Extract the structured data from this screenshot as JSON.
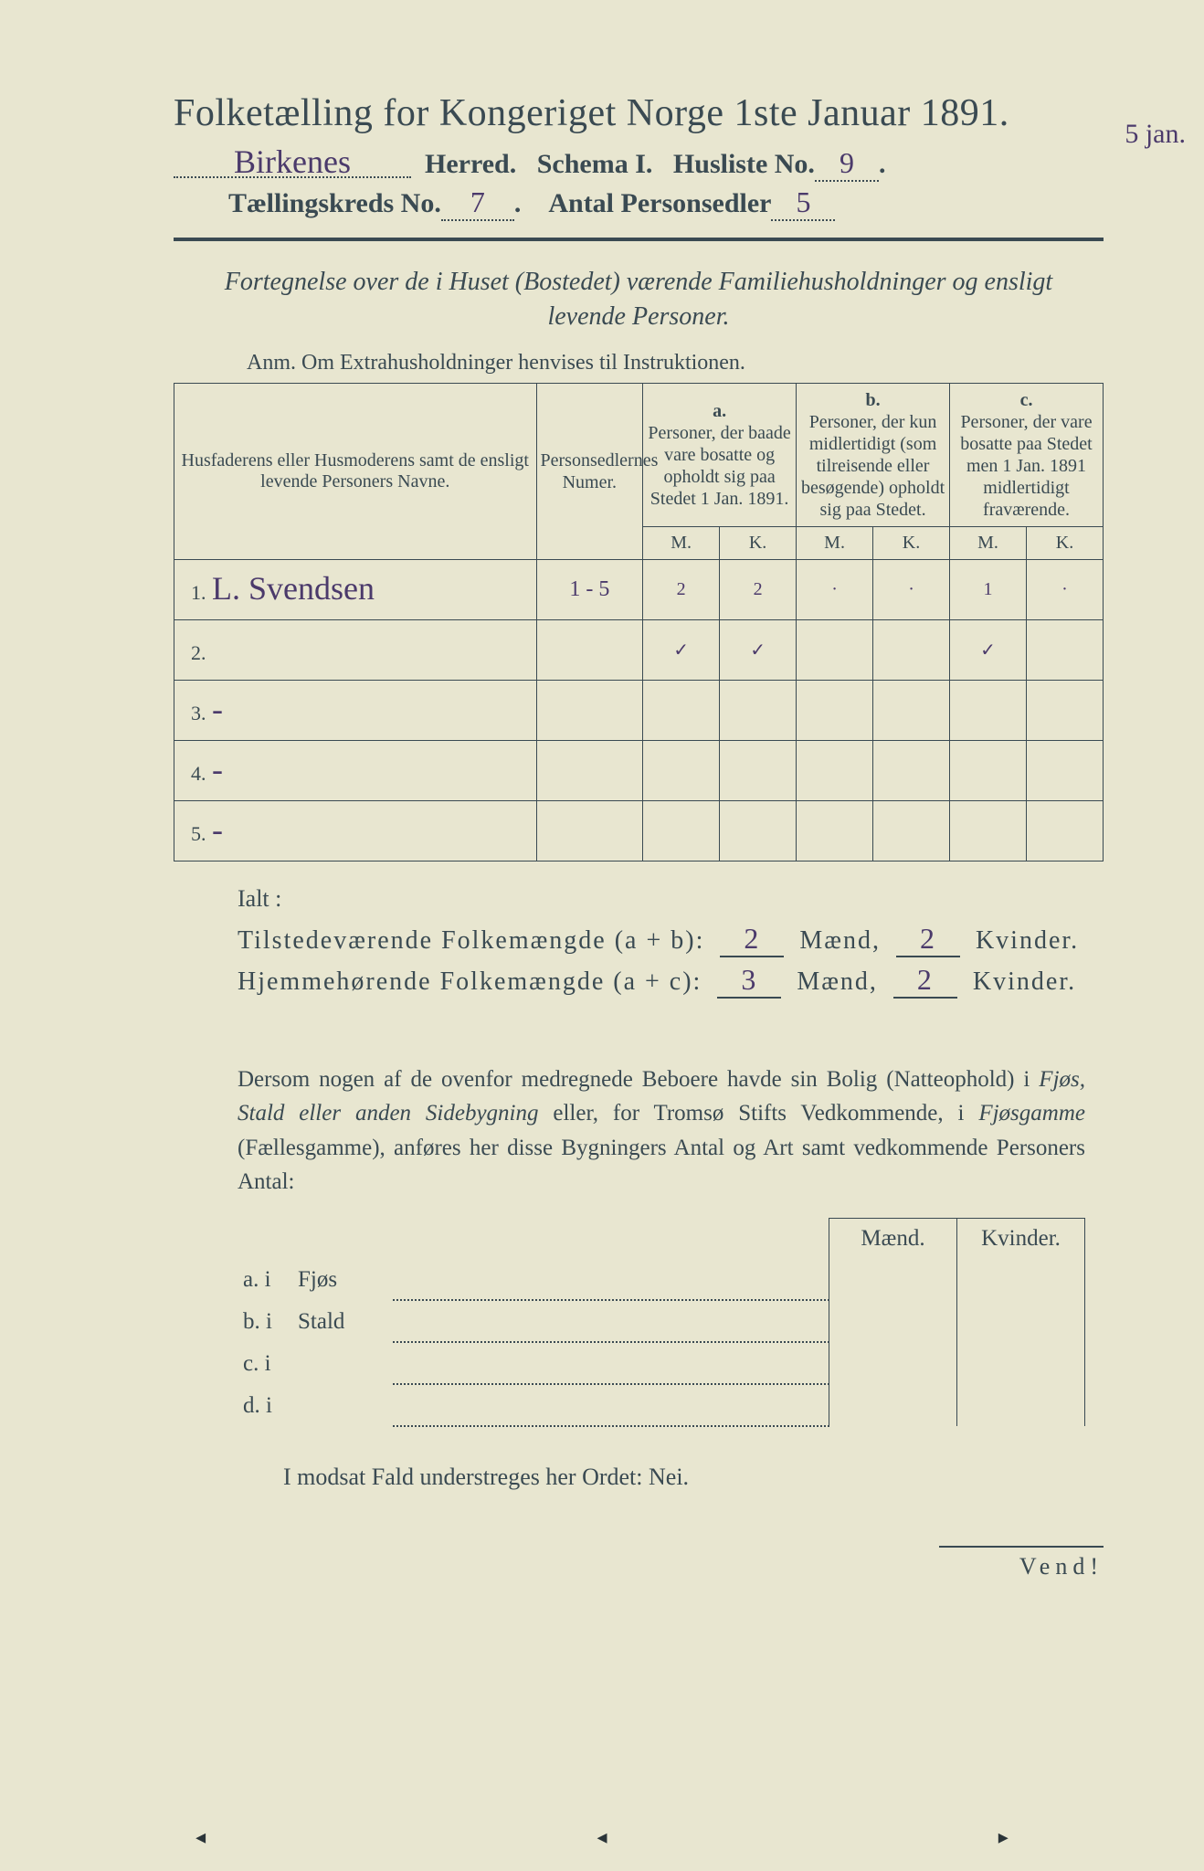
{
  "colors": {
    "paper": "#e8e6d0",
    "ink": "#3a4a52",
    "handwriting": "#4b3a6b"
  },
  "header": {
    "title": "Folketælling for Kongeriget Norge 1ste Januar 1891.",
    "herred_value": "Birkenes",
    "herred_label": "Herred.",
    "schema_label": "Schema I.",
    "husliste_label": "Husliste No.",
    "husliste_value": "9",
    "dot_after": ".",
    "kreds_label": "Tællingskreds No.",
    "kreds_value": "7",
    "personsedler_label": "Antal Personsedler",
    "personsedler_value": "5",
    "margin_note": "5 jan."
  },
  "fortegnelse": {
    "line1": "Fortegnelse over de i Huset (Bostedet) værende Familiehusholdninger og ensligt",
    "line2": "levende Personer."
  },
  "anm": "Anm.  Om Extrahusholdninger henvises til Instruktionen.",
  "table": {
    "col_name": "Husfaderens eller Husmoderens samt de ensligt levende Personers Navne.",
    "col_num": "Personsedlernes Numer.",
    "group_a_letter": "a.",
    "group_a": "Personer, der baade vare bosatte og opholdt sig paa Stedet 1 Jan. 1891.",
    "group_b_letter": "b.",
    "group_b": "Personer, der kun midlertidigt (som tilreisende eller besøgende) opholdt sig paa Stedet.",
    "group_c_letter": "c.",
    "group_c": "Personer, der vare bosatte paa Stedet men 1 Jan. 1891 midlertidigt fraværende.",
    "m": "M.",
    "k": "K.",
    "rows": [
      {
        "idx": "1.",
        "name": "L. Svendsen",
        "num": "1 - 5",
        "a_m": "2",
        "a_k": "2",
        "b_m": "·",
        "b_k": "·",
        "c_m": "1",
        "c_k": "·"
      },
      {
        "idx": "2.",
        "name": "",
        "num": "",
        "a_m": "✓",
        "a_k": "✓",
        "b_m": "",
        "b_k": "",
        "c_m": "✓",
        "c_k": ""
      },
      {
        "idx": "3.",
        "name": "-",
        "num": "",
        "a_m": "",
        "a_k": "",
        "b_m": "",
        "b_k": "",
        "c_m": "",
        "c_k": ""
      },
      {
        "idx": "4.",
        "name": "-",
        "num": "",
        "a_m": "",
        "a_k": "",
        "b_m": "",
        "b_k": "",
        "c_m": "",
        "c_k": ""
      },
      {
        "idx": "5.",
        "name": "-",
        "num": "",
        "a_m": "",
        "a_k": "",
        "b_m": "",
        "b_k": "",
        "c_m": "",
        "c_k": ""
      }
    ]
  },
  "ialt_label": "Ialt :",
  "sum": {
    "tilstede_label": "Tilstedeværende Folkemængde (a + b):",
    "tilstede_m": "2",
    "tilstede_k": "2",
    "hjemme_label": "Hjemmehørende Folkemængde (a + c):",
    "hjemme_m": "3",
    "hjemme_k": "2",
    "maend": "Mænd,",
    "kvinder": "Kvinder."
  },
  "para": {
    "t1": "Dersom nogen af de ovenfor medregnede Beboere havde sin Bolig (Natteophold) i ",
    "i1": "Fjøs, Stald eller anden Sidebygning",
    "t2": " eller, for Tromsø Stifts Vedkommende, i ",
    "i2": "Fjøsgamme",
    "t3": " (Fællesgamme), anføres her disse Bygningers Antal og Art samt vedkommende Personers Antal:"
  },
  "bottom": {
    "maend": "Mænd.",
    "kvinder": "Kvinder.",
    "rows": [
      {
        "lead": "a.  i",
        "lab": "Fjøs"
      },
      {
        "lead": "b.  i",
        "lab": "Stald"
      },
      {
        "lead": "c.  i",
        "lab": ""
      },
      {
        "lead": "d.  i",
        "lab": ""
      }
    ]
  },
  "nei": "I modsat Fald understreges her Ordet: Nei.",
  "vend": "Vend!"
}
